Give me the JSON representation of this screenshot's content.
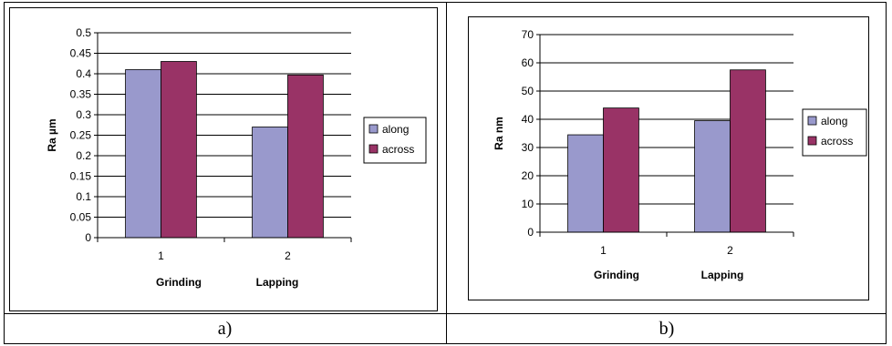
{
  "captions": [
    "a)",
    "b)"
  ],
  "colors": {
    "along": "#9999cc",
    "across": "#993366",
    "gridline": "#000000"
  },
  "chart_data": [
    {
      "type": "bar",
      "categories": [
        "1",
        "2"
      ],
      "category_group_labels": [
        "Grinding",
        "Lapping"
      ],
      "ylabel": "Ra  µm",
      "ylim": [
        0,
        0.5
      ],
      "ytick_step": 0.05,
      "yticks": [
        "0",
        "0.05",
        "0.1",
        "0.15",
        "0.2",
        "0.25",
        "0.3",
        "0.35",
        "0.4",
        "0.45",
        "0.5"
      ],
      "grid": true,
      "legend": "right",
      "series": [
        {
          "name": "along",
          "values": [
            0.41,
            0.27
          ]
        },
        {
          "name": "across",
          "values": [
            0.43,
            0.397
          ]
        }
      ]
    },
    {
      "type": "bar",
      "categories": [
        "1",
        "2"
      ],
      "category_group_labels": [
        "Grinding",
        "Lapping"
      ],
      "ylabel": "Ra    nm",
      "ylim": [
        0,
        70
      ],
      "ytick_step": 10,
      "yticks": [
        "0",
        "10",
        "20",
        "30",
        "40",
        "50",
        "60",
        "70"
      ],
      "grid": true,
      "legend": "right",
      "series": [
        {
          "name": "along",
          "values": [
            34.5,
            39.5
          ]
        },
        {
          "name": "across",
          "values": [
            44,
            57.5
          ]
        }
      ]
    }
  ]
}
